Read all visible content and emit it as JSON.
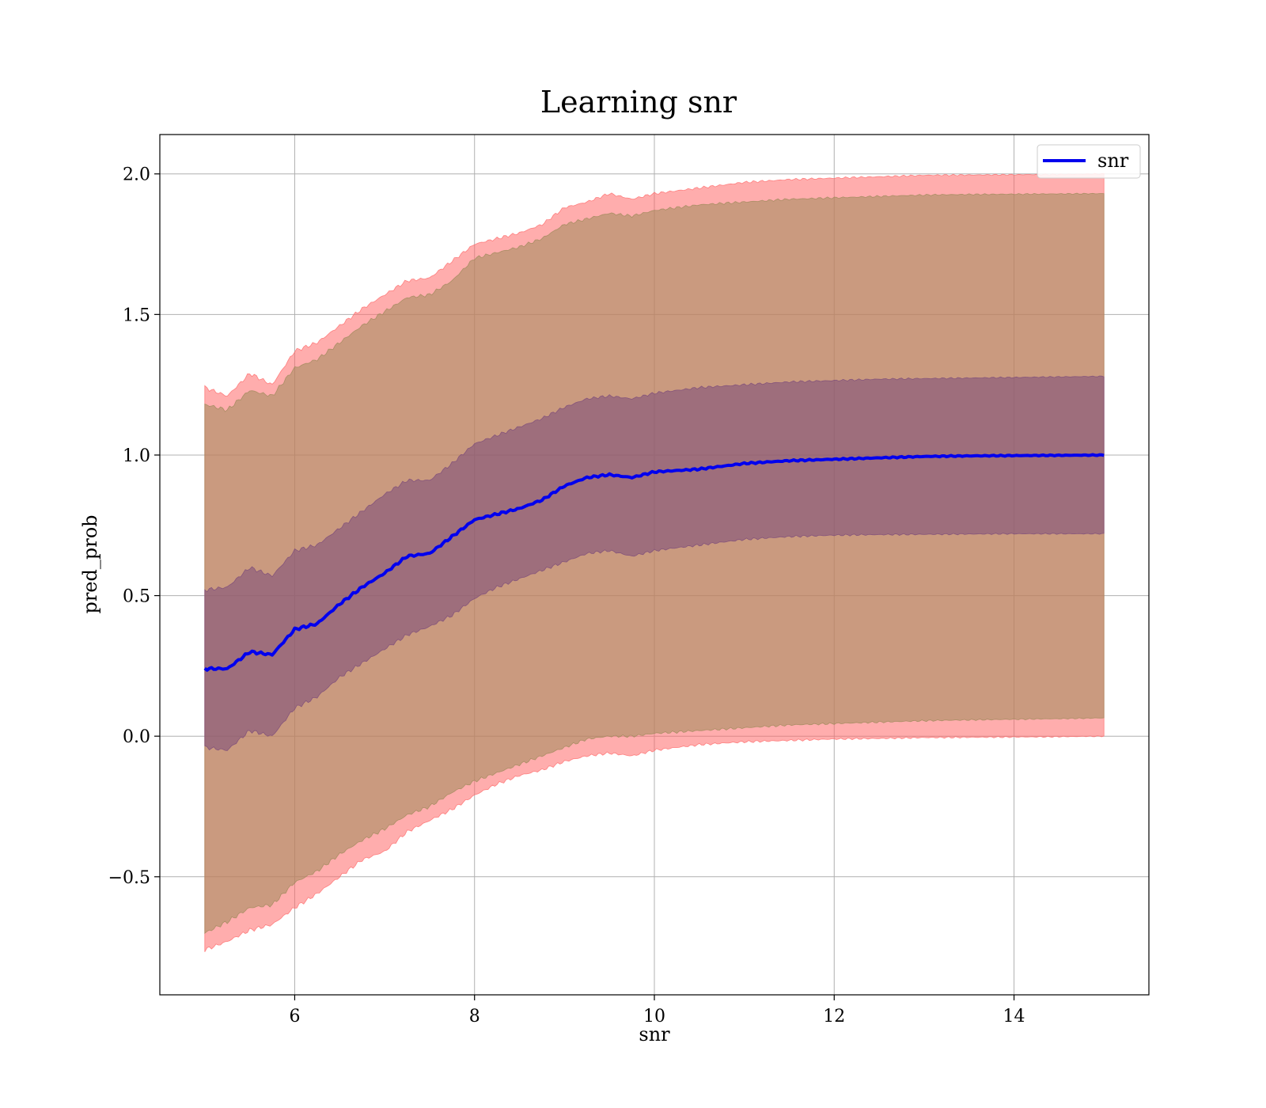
{
  "chart_data": {
    "type": "line",
    "title": "Learning snr",
    "xlabel": "snr",
    "ylabel": "pred_prob",
    "xlim": [
      4.5,
      15.5
    ],
    "ylim": [
      -0.92,
      2.14
    ],
    "xticks": [
      6,
      8,
      10,
      12,
      14
    ],
    "yticks": [
      -0.5,
      0.0,
      0.5,
      1.0,
      1.5,
      2.0
    ],
    "xtick_labels": [
      "6",
      "8",
      "10",
      "12",
      "14"
    ],
    "ytick_labels": [
      "−0.5",
      "0.0",
      "0.5",
      "1.0",
      "1.5",
      "2.0"
    ],
    "grid": true,
    "legend": {
      "position": "top-right",
      "entries": [
        "snr"
      ]
    },
    "x": [
      5.0,
      5.25,
      5.5,
      5.75,
      6.0,
      6.25,
      6.5,
      6.75,
      7.0,
      7.25,
      7.5,
      7.75,
      8.0,
      8.25,
      8.5,
      8.75,
      9.0,
      9.25,
      9.5,
      9.75,
      10.0,
      10.5,
      11.0,
      11.5,
      12.0,
      12.5,
      13.0,
      13.5,
      14.0,
      14.5,
      15.0
    ],
    "series": [
      {
        "name": "snr",
        "color": "#0000ee",
        "values": [
          0.24,
          0.24,
          0.3,
          0.29,
          0.38,
          0.4,
          0.47,
          0.53,
          0.58,
          0.64,
          0.65,
          0.71,
          0.77,
          0.79,
          0.81,
          0.84,
          0.89,
          0.92,
          0.93,
          0.92,
          0.94,
          0.95,
          0.97,
          0.98,
          0.985,
          0.99,
          0.995,
          0.997,
          0.998,
          0.999,
          1.0
        ]
      }
    ],
    "bands": [
      {
        "color": "#ff6a6a",
        "opacity": 0.55,
        "lower": [
          -0.76,
          -0.73,
          -0.69,
          -0.67,
          -0.61,
          -0.56,
          -0.5,
          -0.44,
          -0.41,
          -0.34,
          -0.3,
          -0.26,
          -0.21,
          -0.17,
          -0.14,
          -0.12,
          -0.09,
          -0.07,
          -0.06,
          -0.07,
          -0.05,
          -0.03,
          -0.02,
          -0.015,
          -0.01,
          -0.008,
          -0.005,
          -0.004,
          -0.003,
          -0.002,
          0.0
        ],
        "upper": [
          1.24,
          1.21,
          1.29,
          1.25,
          1.37,
          1.4,
          1.46,
          1.52,
          1.57,
          1.62,
          1.63,
          1.69,
          1.75,
          1.77,
          1.79,
          1.82,
          1.88,
          1.9,
          1.93,
          1.91,
          1.93,
          1.95,
          1.97,
          1.98,
          1.985,
          1.99,
          1.995,
          1.996,
          1.997,
          1.998,
          2.0
        ]
      },
      {
        "color": "#9e8a5a",
        "opacity": 0.55,
        "lower": [
          -0.7,
          -0.66,
          -0.61,
          -0.6,
          -0.52,
          -0.48,
          -0.42,
          -0.37,
          -0.33,
          -0.28,
          -0.25,
          -0.2,
          -0.16,
          -0.13,
          -0.1,
          -0.07,
          -0.04,
          -0.01,
          0.0,
          0.0,
          0.01,
          0.02,
          0.03,
          0.04,
          0.045,
          0.05,
          0.055,
          0.058,
          0.06,
          0.062,
          0.065
        ],
        "upper": [
          1.18,
          1.16,
          1.23,
          1.21,
          1.31,
          1.34,
          1.4,
          1.46,
          1.51,
          1.56,
          1.57,
          1.62,
          1.7,
          1.72,
          1.74,
          1.77,
          1.82,
          1.84,
          1.86,
          1.85,
          1.87,
          1.89,
          1.9,
          1.91,
          1.915,
          1.92,
          1.925,
          1.927,
          1.928,
          1.929,
          1.93
        ]
      },
      {
        "color": "#7a4a7a",
        "opacity": 0.55,
        "lower": [
          -0.04,
          -0.05,
          0.02,
          0.0,
          0.1,
          0.14,
          0.21,
          0.26,
          0.31,
          0.36,
          0.39,
          0.43,
          0.49,
          0.53,
          0.56,
          0.59,
          0.62,
          0.65,
          0.66,
          0.64,
          0.66,
          0.68,
          0.7,
          0.71,
          0.715,
          0.717,
          0.718,
          0.719,
          0.72,
          0.72,
          0.72
        ],
        "upper": [
          0.52,
          0.53,
          0.6,
          0.57,
          0.66,
          0.68,
          0.74,
          0.8,
          0.86,
          0.91,
          0.91,
          0.97,
          1.04,
          1.07,
          1.1,
          1.13,
          1.17,
          1.2,
          1.21,
          1.2,
          1.22,
          1.24,
          1.25,
          1.26,
          1.265,
          1.27,
          1.272,
          1.274,
          1.276,
          1.278,
          1.28
        ]
      }
    ]
  }
}
